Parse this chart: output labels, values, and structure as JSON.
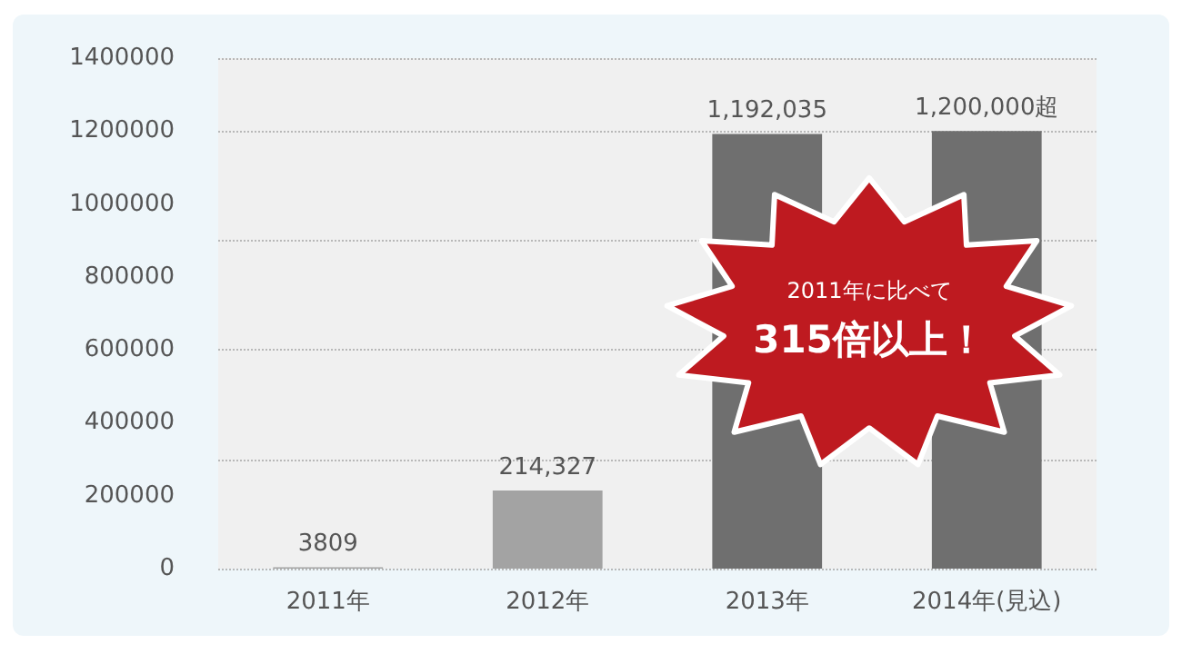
{
  "chart_data": {
    "type": "bar",
    "categories": [
      "2011年",
      "2012年",
      "2013年",
      "2014年(見込)"
    ],
    "values": [
      3809,
      214327,
      1192035,
      1200000
    ],
    "colors": [
      "#a3a3a3",
      "#a3a3a3",
      "#6f6f6f",
      "#6f6f6f"
    ],
    "value_labels": [
      "3809",
      "214,327",
      "1,192,035",
      "1,200,000超"
    ],
    "ylim": [
      0,
      1400000
    ],
    "yticks": [
      0,
      200000,
      400000,
      600000,
      800000,
      1000000,
      1200000,
      1400000
    ],
    "grid": "y",
    "annotations": [
      "2011年に比べて",
      "315倍以上！"
    ]
  }
}
